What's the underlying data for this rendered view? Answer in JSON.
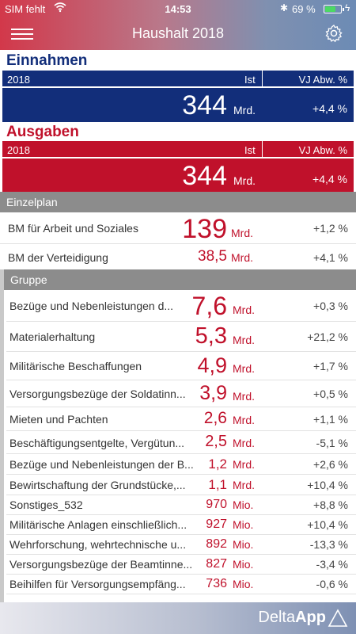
{
  "status": {
    "carrier": "SIM fehlt",
    "time": "14:53",
    "battery": "69 %",
    "battery_level": 0.69,
    "colors": {
      "battery_fill": "#4cd964"
    }
  },
  "header": {
    "title": "Haushalt 2018",
    "menu_icon": "hamburger-icon",
    "settings_icon": "gear-icon"
  },
  "einnahmen": {
    "title": "Einnahmen",
    "year": "2018",
    "ist": "Ist",
    "vj": "VJ Abw. %",
    "value": "344",
    "unit": "Mrd.",
    "pct": "+4,4 %"
  },
  "ausgaben": {
    "title": "Ausgaben",
    "year": "2018",
    "ist": "Ist",
    "vj": "VJ Abw. %",
    "value": "344",
    "unit": "Mrd.",
    "pct": "+4,4 %"
  },
  "einzelplan": {
    "header": "Einzelplan",
    "rows": [
      {
        "label": "BM für Arbeit und Soziales",
        "value": "139",
        "unit": "Mrd.",
        "pct": "+1,2 %"
      },
      {
        "label": "BM der Verteidigung",
        "value": "38,5",
        "unit": "Mrd.",
        "pct": "+4,1 %"
      }
    ]
  },
  "gruppe": {
    "header": "Gruppe",
    "rows": [
      {
        "label": "Bezüge und Nebenleistungen d...",
        "value": "7,6",
        "unit": "Mrd.",
        "pct": "+0,3 %"
      },
      {
        "label": "Materialerhaltung",
        "value": "5,3",
        "unit": "Mrd.",
        "pct": "+21,2 %"
      },
      {
        "label": "Militärische Beschaffungen",
        "value": "4,9",
        "unit": "Mrd.",
        "pct": "+1,7 %"
      },
      {
        "label": "Versorgungsbezüge der Soldatinn...",
        "value": "3,9",
        "unit": "Mrd.",
        "pct": "+0,5 %"
      },
      {
        "label": "Mieten und Pachten",
        "value": "2,6",
        "unit": "Mrd.",
        "pct": "+1,1 %"
      },
      {
        "label": "Beschäftigungsentgelte, Vergütun...",
        "value": "2,5",
        "unit": "Mrd.",
        "pct": "-5,1 %"
      },
      {
        "label": "Bezüge und Nebenleistungen der B...",
        "value": "1,2",
        "unit": "Mrd.",
        "pct": "+2,6 %"
      },
      {
        "label": "Bewirtschaftung der Grundstücke,...",
        "value": "1,1",
        "unit": "Mrd.",
        "pct": "+10,4 %"
      },
      {
        "label": "Sonstiges_532",
        "value": "970",
        "unit": "Mio.",
        "pct": "+8,8 %"
      },
      {
        "label": "Militärische Anlagen einschließlich...",
        "value": "927",
        "unit": "Mio.",
        "pct": "+10,4 %"
      },
      {
        "label": "Wehrforschung, wehrtechnische u...",
        "value": "892",
        "unit": "Mio.",
        "pct": "-13,3 %"
      },
      {
        "label": "Versorgungsbezüge der Beamtinne...",
        "value": "827",
        "unit": "Mio.",
        "pct": "-3,4 %"
      },
      {
        "label": "Beihilfen für Versorgungsempfäng...",
        "value": "736",
        "unit": "Mio.",
        "pct": "-0,6 %"
      }
    ]
  },
  "footer": {
    "brand_light": "Delta",
    "brand_bold": "App"
  }
}
